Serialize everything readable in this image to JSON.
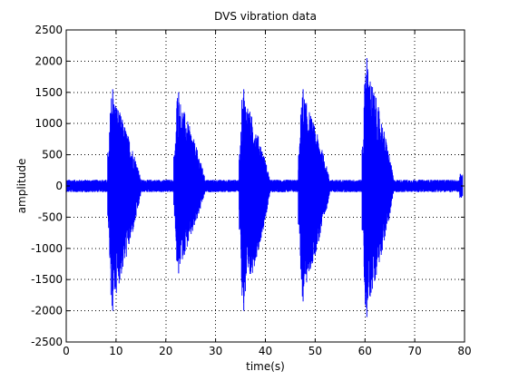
{
  "colors": {
    "background": "#ffffff",
    "axes": "#000000",
    "grid": "#000000",
    "series": "#0000ff"
  },
  "chart_data": {
    "type": "line",
    "title": "DVS vibration data",
    "xlabel": "time(s)",
    "ylabel": "amplitude",
    "xlim": [
      0,
      80
    ],
    "ylim": [
      -2500,
      2500
    ],
    "xticks": [
      0,
      10,
      20,
      30,
      40,
      50,
      60,
      70,
      80
    ],
    "yticks": [
      2500,
      2000,
      1500,
      1000,
      500,
      0,
      -500,
      -1000,
      -1500,
      -2000,
      -2500
    ],
    "grid": true,
    "series": [
      {
        "color": "#0000ff",
        "baseline_noise_amplitude": 100,
        "bursts": [
          {
            "start": 8.3,
            "end": 15.2,
            "peak_positive": 1550,
            "peak_negative": -2000
          },
          {
            "start": 21.6,
            "end": 28.1,
            "peak_positive": 1500,
            "peak_negative": -1400
          },
          {
            "start": 34.7,
            "end": 41.1,
            "peak_positive": 1550,
            "peak_negative": -2000
          },
          {
            "start": 46.6,
            "end": 53.1,
            "peak_positive": 1550,
            "peak_negative": -1850
          },
          {
            "start": 59.4,
            "end": 65.9,
            "peak_positive": 2050,
            "peak_negative": -2100
          }
        ],
        "end_spike": {
          "x": 79.3,
          "positive": 200,
          "negative": -200
        }
      }
    ]
  }
}
